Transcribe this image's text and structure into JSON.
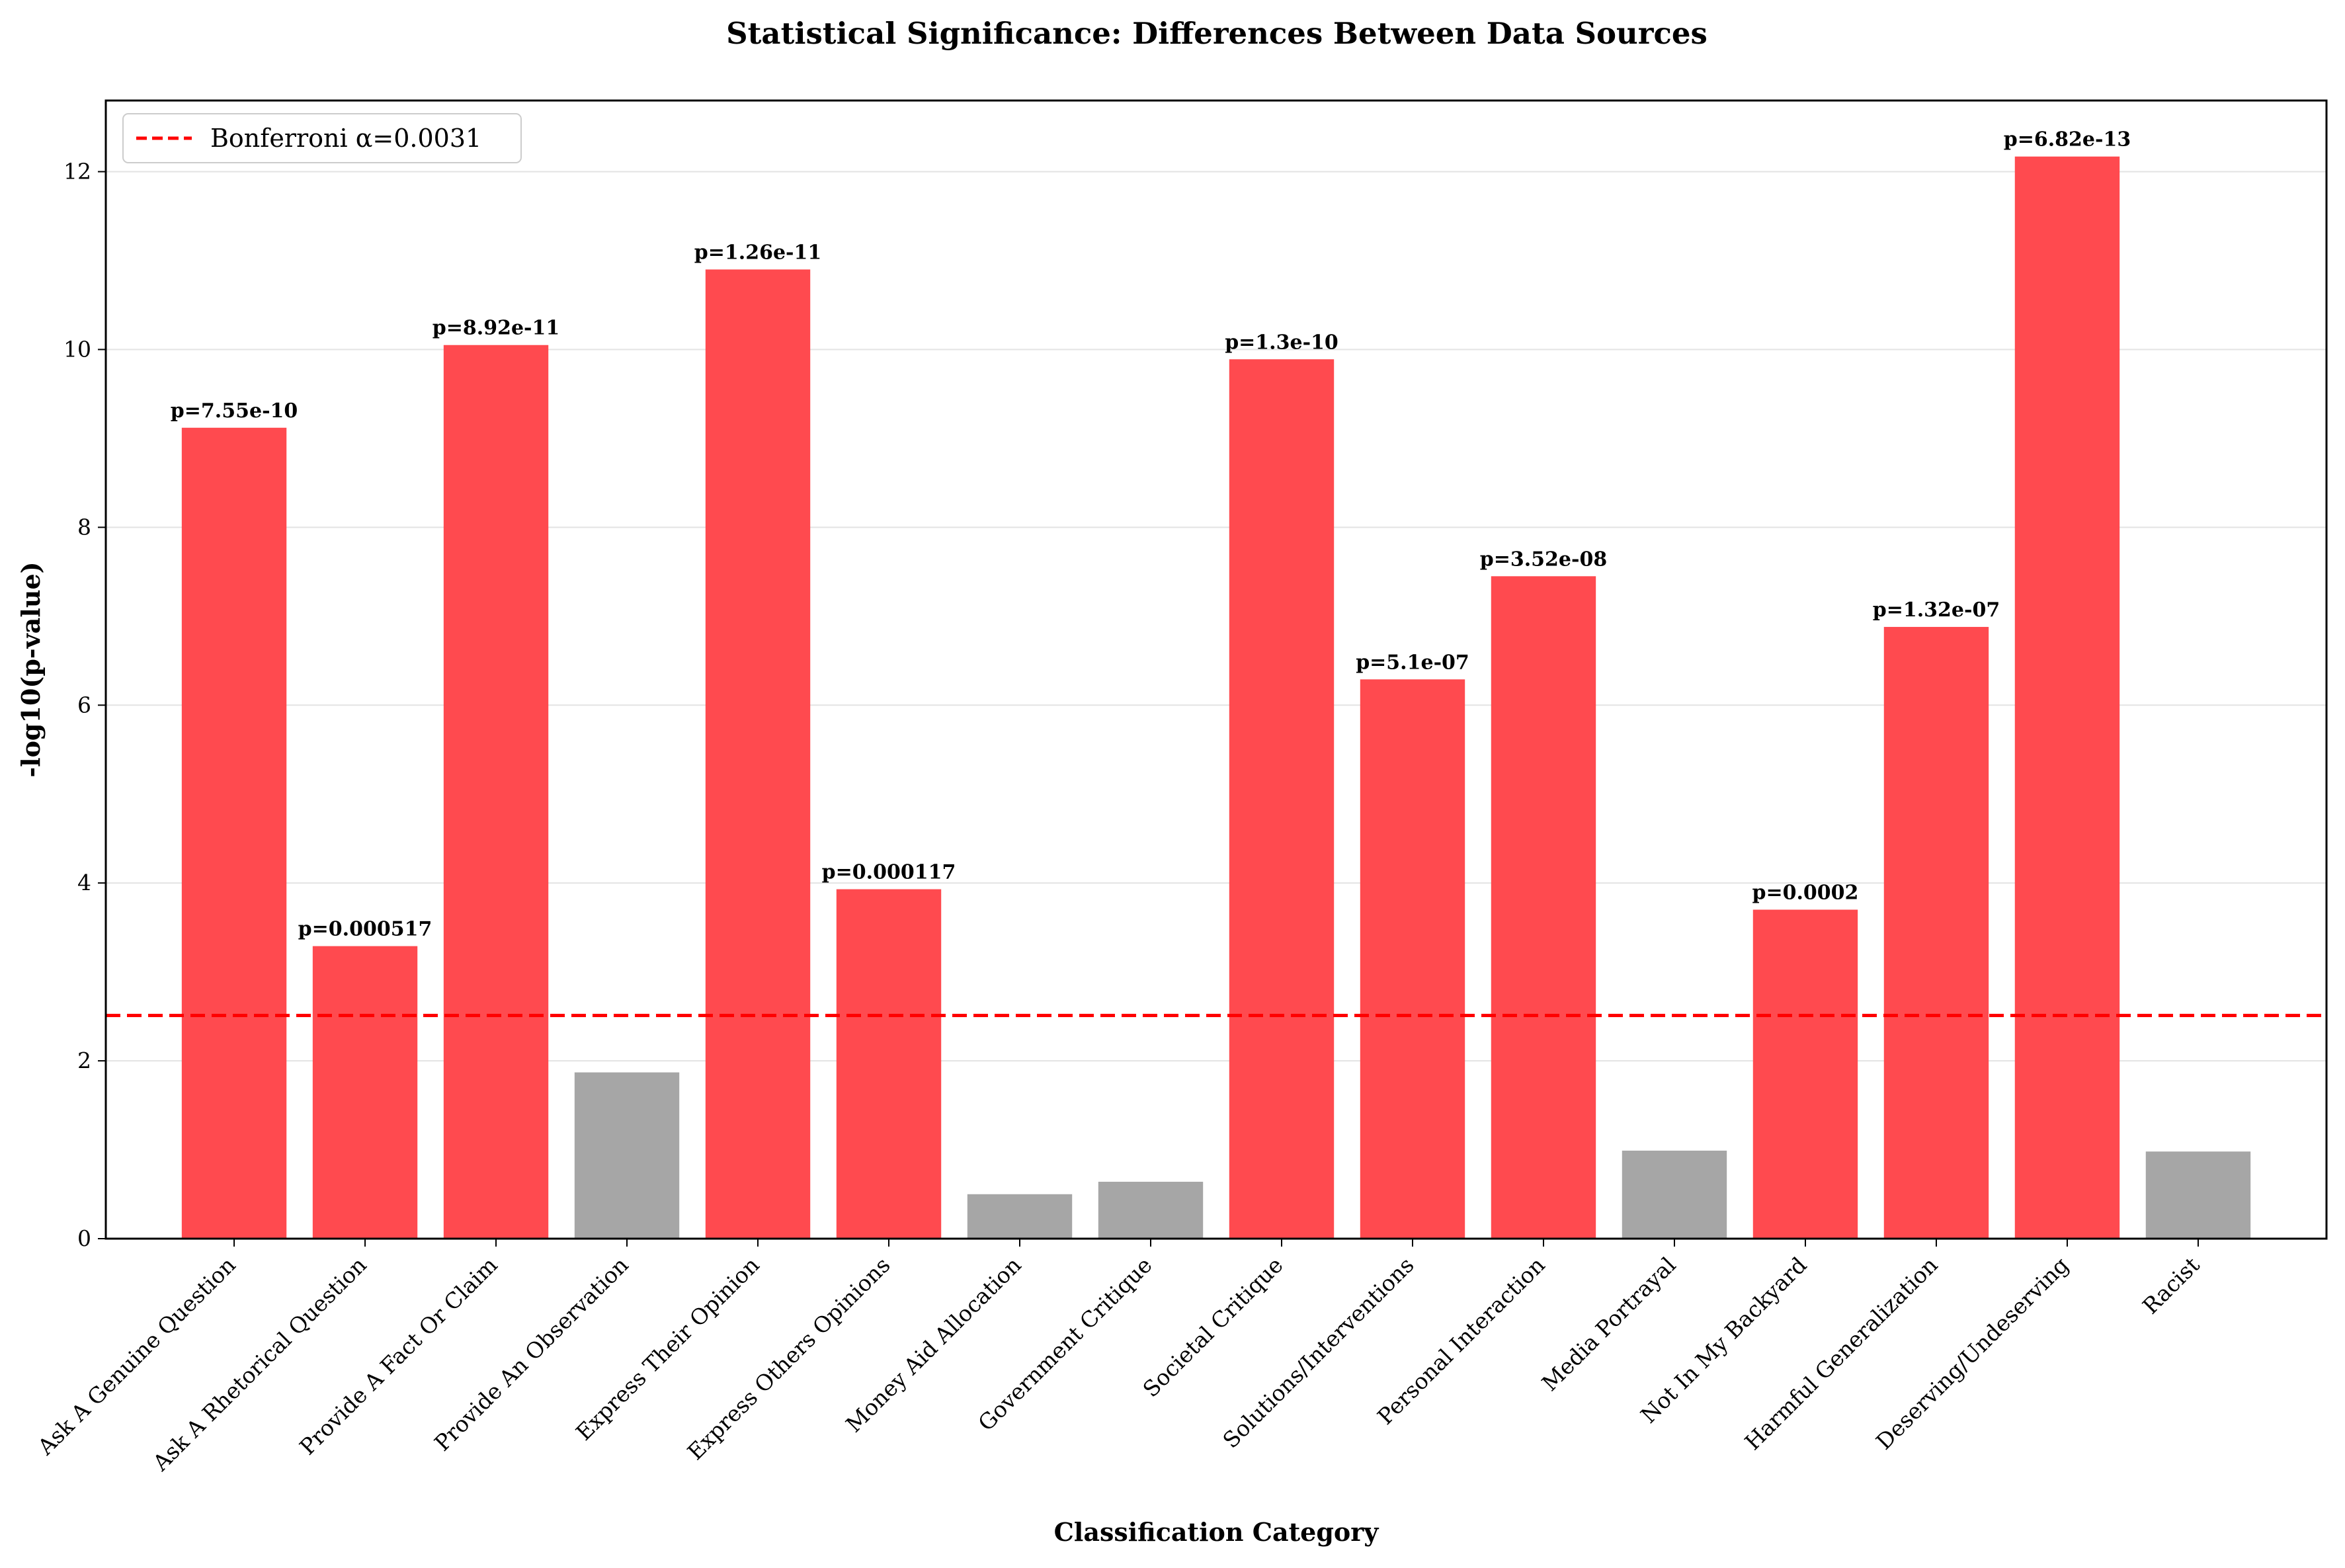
{
  "chart_data": {
    "type": "bar",
    "title": "Statistical Significance: Differences Between Data Sources",
    "xlabel": "Classification Category",
    "ylabel": "-log10(p-value)",
    "ylim": [
      0,
      12.8
    ],
    "yticks": [
      0,
      2,
      4,
      6,
      8,
      10,
      12
    ],
    "grid": "horizontal",
    "legend_position": "top-left",
    "categories": [
      "Ask A Genuine Question",
      "Ask A Rhetorical Question",
      "Provide A Fact Or Claim",
      "Provide An Observation",
      "Express Their Opinion",
      "Express Others Opinions",
      "Money Aid Allocation",
      "Government Critique",
      "Societal Critique",
      "Solutions/Interventions",
      "Personal Interaction",
      "Media Portrayal",
      "Not In My Backyard",
      "Harmful Generalization",
      "Deserving/Undeserving",
      "Racist"
    ],
    "values": [
      9.12,
      3.29,
      10.05,
      1.87,
      10.9,
      3.93,
      0.5,
      0.64,
      9.89,
      6.29,
      7.45,
      0.99,
      3.7,
      6.88,
      12.17,
      0.98
    ],
    "significant": [
      true,
      true,
      true,
      false,
      true,
      true,
      false,
      false,
      true,
      true,
      true,
      false,
      true,
      true,
      true,
      false
    ],
    "p_labels": [
      "p=7.55e-10",
      "p=0.000517",
      "p=8.92e-11",
      "",
      "p=1.26e-11",
      "p=0.000117",
      "",
      "",
      "p=1.3e-10",
      "p=5.1e-07",
      "p=3.52e-08",
      "",
      "p=0.0002",
      "p=1.32e-07",
      "p=6.82e-13",
      ""
    ],
    "threshold": {
      "label": "Bonferroni α=0.0031",
      "value": 2.51,
      "color": "#ff0000"
    },
    "colors": {
      "significant": "#ff4a4f",
      "not_significant": "#a6a6a6"
    }
  }
}
